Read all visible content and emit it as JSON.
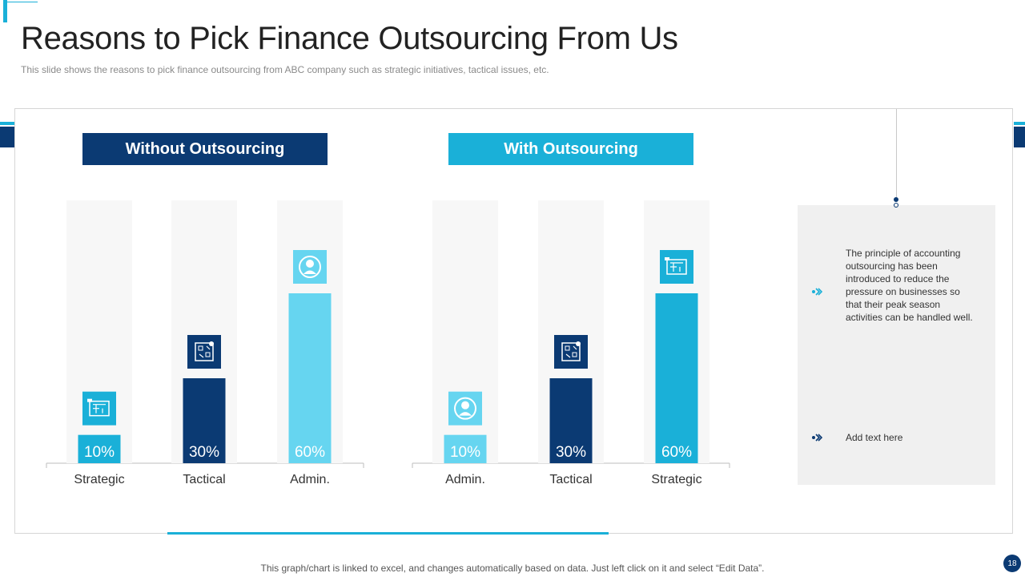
{
  "slide": {
    "title": "Reasons to Pick Finance Outsourcing From Us",
    "subtitle": "This slide shows the reasons to pick finance outsourcing from ABC company such as strategic initiatives, tactical issues, etc.",
    "footer_note": "This graph/chart is linked to excel,  and changes automatically based on data. Just left click on it and select “Edit Data”.",
    "page_number": "18"
  },
  "colors": {
    "dark_blue": "#0b3a73",
    "cyan": "#1ab0d8",
    "light_cyan": "#66d5f0",
    "track": "#f7f7f7"
  },
  "info_panel": {
    "items": [
      {
        "icon": "chevron-arrow-icon",
        "text": "The principle of accounting outsourcing has been introduced to reduce the pressure on businesses so that their peak season activities can be handled well."
      },
      {
        "icon": "chevron-arrow-icon",
        "text": "Add text here"
      }
    ]
  },
  "chart_data": [
    {
      "type": "bar",
      "title": "Without Outsourcing",
      "categories": [
        "Strategic",
        "Tactical",
        "Admin."
      ],
      "values": [
        10,
        30,
        60
      ],
      "value_labels": [
        "10%",
        "30%",
        "60%"
      ],
      "colors": [
        "#1ab0d8",
        "#0b3a73",
        "#66d5f0"
      ],
      "icons": [
        "blueprint-icon",
        "planning-board-icon",
        "user-icon"
      ],
      "ylim": [
        0,
        100
      ]
    },
    {
      "type": "bar",
      "title": "With Outsourcing",
      "categories": [
        "Admin.",
        "Tactical",
        "Strategic"
      ],
      "values": [
        10,
        30,
        60
      ],
      "value_labels": [
        "10%",
        "30%",
        "60%"
      ],
      "colors": [
        "#66d5f0",
        "#0b3a73",
        "#1ab0d8"
      ],
      "icons": [
        "user-icon",
        "planning-board-icon",
        "blueprint-icon"
      ],
      "ylim": [
        0,
        100
      ]
    }
  ]
}
